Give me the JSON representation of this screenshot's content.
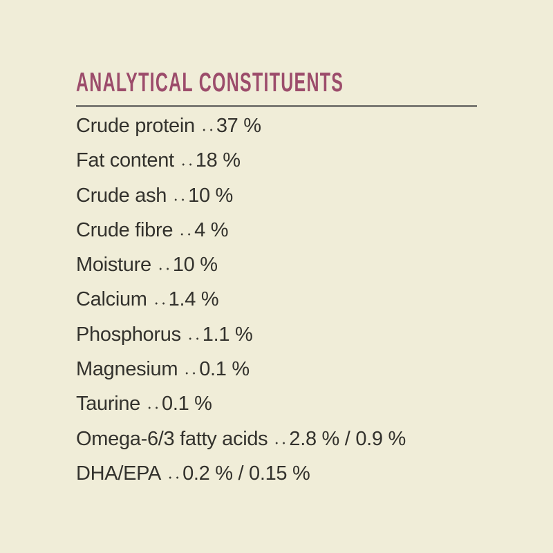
{
  "page": {
    "title": "ANALYTICAL CONSTITUENTS"
  },
  "colors": {
    "background": "#f0edd8",
    "title": "#9c4c6b",
    "text": "#33322d",
    "divider": "#7b7a74",
    "dots": "#3a3932"
  },
  "table": {
    "rows": [
      {
        "label": "Crude protein",
        "value": "37 %"
      },
      {
        "label": "Fat content",
        "value": "18 %"
      },
      {
        "label": "Crude ash",
        "value": "10 %"
      },
      {
        "label": "Crude fibre",
        "value": "4 %"
      },
      {
        "label": "Moisture",
        "value": "10 %"
      },
      {
        "label": "Calcium",
        "value": "1.4 %"
      },
      {
        "label": "Phosphorus",
        "value": "1.1 %"
      },
      {
        "label": "Magnesium",
        "value": "0.1 %"
      },
      {
        "label": "Taurine",
        "value": "0.1 %"
      },
      {
        "label": "Omega-6/3 fatty acids",
        "value": "2.8 % / 0.9 %"
      },
      {
        "label": "DHA/EPA",
        "value": "0.2 % / 0.15 %"
      }
    ]
  }
}
